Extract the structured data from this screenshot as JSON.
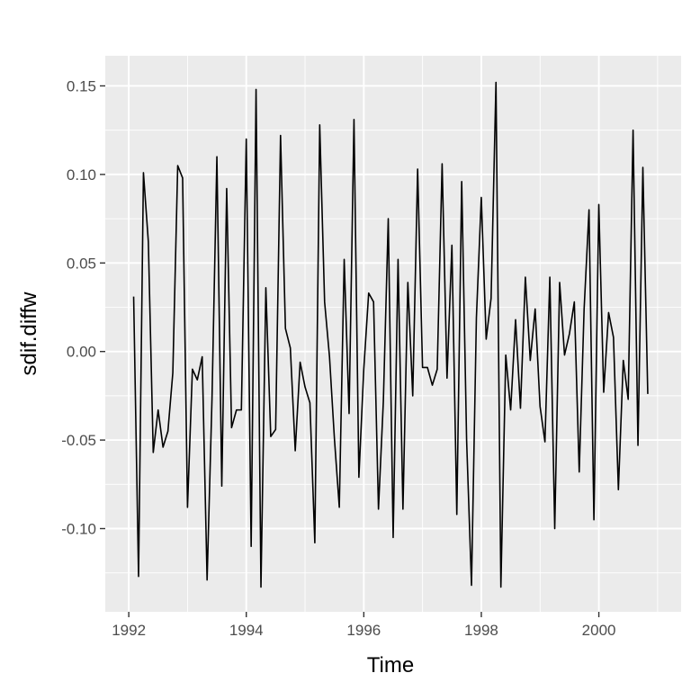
{
  "chart_data": {
    "type": "line",
    "xlabel": "Time",
    "ylabel": "sdif.diffw",
    "xlim": [
      1991.6,
      2001.4
    ],
    "ylim": [
      -0.147,
      0.167
    ],
    "x_ticks": [
      1992,
      1994,
      1996,
      1998,
      2000
    ],
    "x_tick_labels": [
      "1992",
      "1994",
      "1996",
      "1998",
      "2000"
    ],
    "y_ticks": [
      -0.1,
      -0.05,
      0.0,
      0.05,
      0.1,
      0.15
    ],
    "y_tick_labels": [
      "-0.10",
      "-0.05",
      "0.00",
      "0.05",
      "0.10",
      "0.15"
    ],
    "grid": true,
    "colors": {
      "panel": "#ebebeb",
      "grid": "#ffffff",
      "line": "#000000"
    },
    "series": [
      {
        "start": 1992.083,
        "step": 0.08333,
        "values": [
          0.031,
          -0.127,
          0.101,
          0.062,
          -0.057,
          -0.033,
          -0.054,
          -0.045,
          -0.012,
          0.105,
          0.098,
          -0.088,
          -0.01,
          -0.016,
          -0.003,
          -0.129,
          -0.027,
          0.11,
          -0.076,
          0.092,
          -0.043,
          -0.033,
          -0.033,
          0.12,
          -0.11,
          0.148,
          -0.133,
          0.036,
          -0.048,
          -0.044,
          0.122,
          0.013,
          0.002,
          -0.056,
          -0.006,
          -0.02,
          -0.029,
          -0.108,
          0.128,
          0.028,
          -0.003,
          -0.049,
          -0.088,
          0.052,
          -0.035,
          0.131,
          -0.071,
          -0.01,
          0.033,
          0.028,
          -0.089,
          -0.028,
          0.075,
          -0.105,
          0.052,
          -0.089,
          0.039,
          -0.025,
          0.103,
          -0.009,
          -0.009,
          -0.019,
          -0.01,
          0.106,
          -0.015,
          0.06,
          -0.092,
          0.096,
          -0.05,
          -0.132,
          0.019,
          0.087,
          0.007,
          0.03,
          0.152,
          -0.133,
          -0.002,
          -0.033,
          0.018,
          -0.032,
          0.042,
          -0.005,
          0.024,
          -0.031,
          -0.051,
          0.042,
          -0.1,
          0.039,
          -0.002,
          0.01,
          0.028,
          -0.068,
          0.024,
          0.08,
          -0.095,
          0.083,
          -0.023,
          0.022,
          0.008,
          -0.078,
          -0.005,
          -0.027,
          0.125,
          -0.053,
          0.104,
          -0.024
        ]
      }
    ]
  }
}
